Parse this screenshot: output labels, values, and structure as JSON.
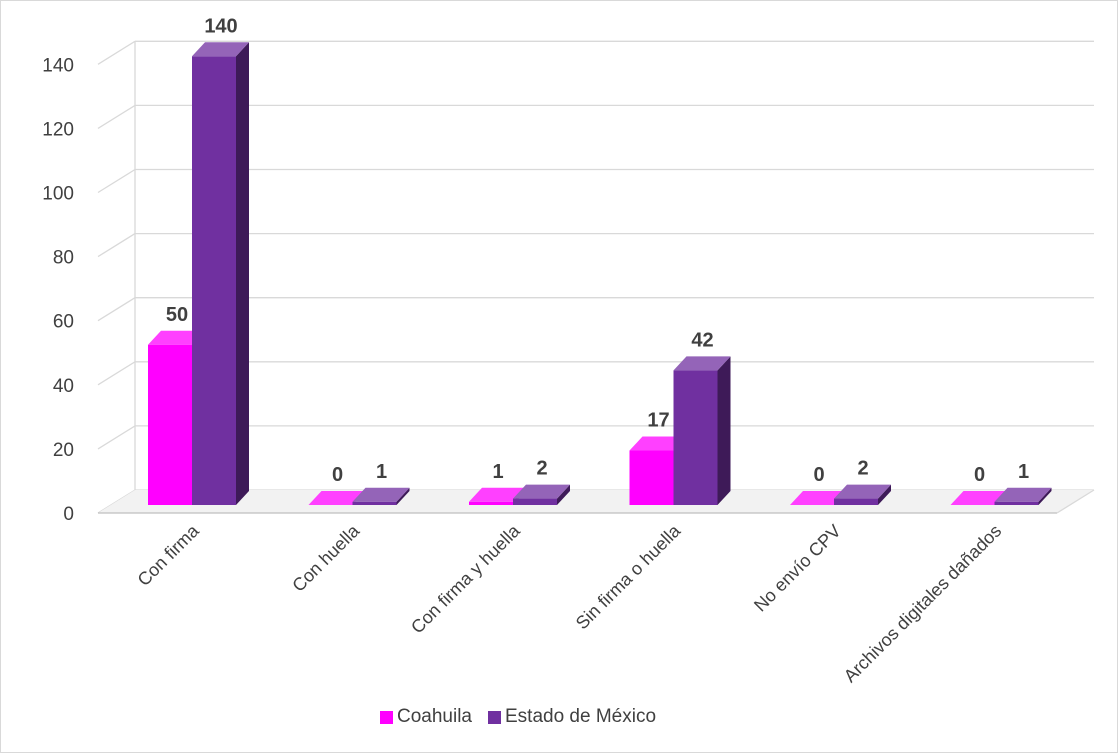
{
  "chart_data": {
    "type": "bar",
    "categories": [
      "Con firma",
      "Con huella",
      "Con firma y huella",
      "Sin firma o huella",
      "No envío CPV",
      "Archivos digitales dañados"
    ],
    "series": [
      {
        "name": "Coahuila",
        "values": [
          50,
          0,
          1,
          17,
          0,
          0
        ],
        "color": "#ff00ff"
      },
      {
        "name": "Estado de México",
        "values": [
          140,
          1,
          2,
          42,
          2,
          1
        ],
        "color": "#7030a0"
      }
    ],
    "y_ticks": [
      "0",
      "20",
      "40",
      "60",
      "80",
      "100",
      "120",
      "140"
    ],
    "ylim": [
      0,
      140
    ],
    "grid": true,
    "legend_position": "bottom",
    "style": "3d-clustered-column"
  }
}
